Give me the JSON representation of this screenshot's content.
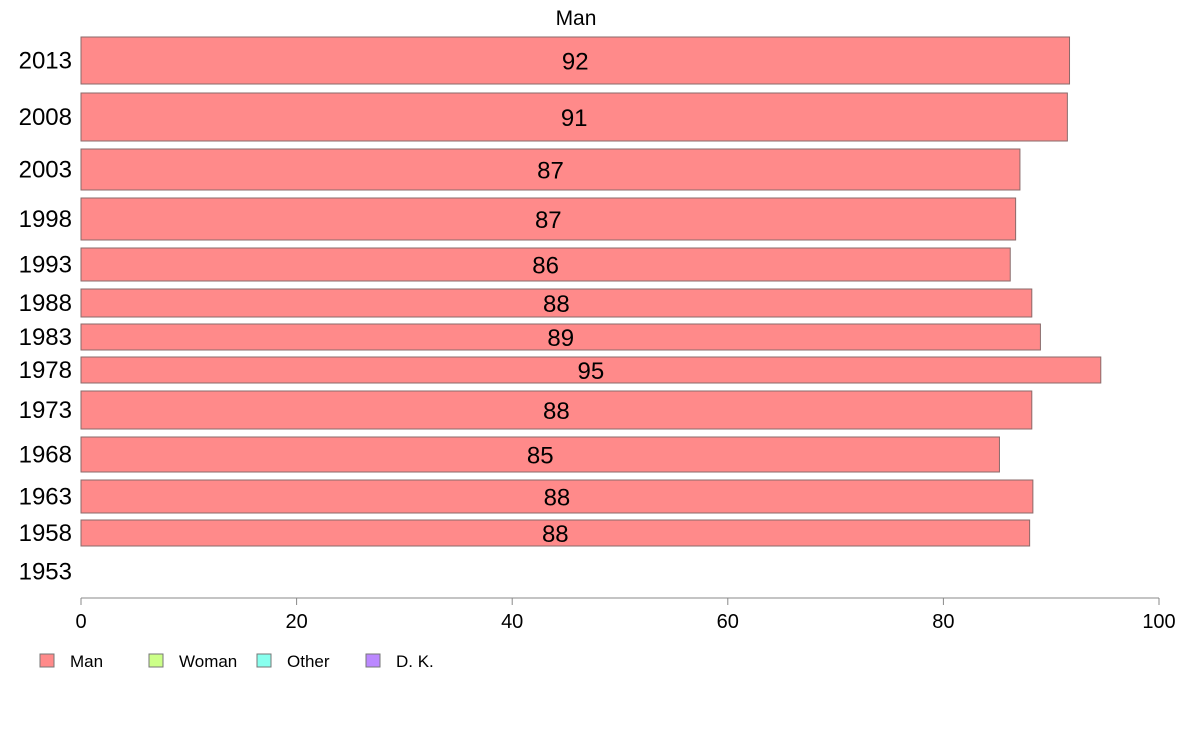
{
  "chart_data": {
    "type": "bar",
    "orientation": "horizontal",
    "title": "Man",
    "categories": [
      "2013",
      "2008",
      "2003",
      "1998",
      "1993",
      "1988",
      "1983",
      "1978",
      "1973",
      "1968",
      "1963",
      "1958",
      "1953"
    ],
    "series": [
      {
        "name": "Man",
        "color": "#ff8a8a",
        "values": [
          91.7,
          91.5,
          87.1,
          86.7,
          86.2,
          88.2,
          89.0,
          94.6,
          88.2,
          85.2,
          88.3,
          88.0,
          null
        ],
        "labels": [
          "92",
          "91",
          "87",
          "87",
          "86",
          "88",
          "89",
          "95",
          "88",
          "85",
          "88",
          "88",
          ""
        ]
      }
    ],
    "xlim": [
      0,
      100
    ],
    "xticks": [
      "0",
      "20",
      "40",
      "60",
      "80",
      "100"
    ],
    "grid": false,
    "legend": {
      "placement": "bottom-left",
      "entries": [
        {
          "label": "Man",
          "color": "#ff8a8a"
        },
        {
          "label": "Woman",
          "color": "#ccff88"
        },
        {
          "label": "Other",
          "color": "#88ffee"
        },
        {
          "label": "D. K.",
          "color": "#bb88ff"
        }
      ]
    }
  }
}
